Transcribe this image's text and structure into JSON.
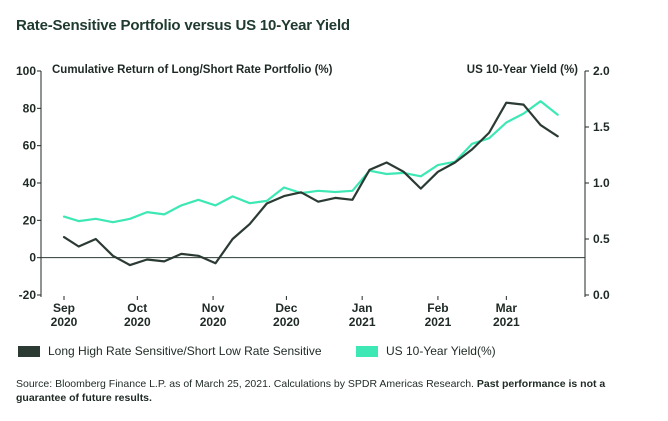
{
  "title": "Rate-Sensitive Portfolio versus US 10-Year Yield",
  "source_text": "Source: Bloomberg Finance L.P. as of March 25, 2021. Calculations by SPDR Americas Research.",
  "disclaimer": "Past performance is not a guarantee of future results.",
  "colors": {
    "series1": "#2b3a32",
    "series2": "#3ee8b5",
    "zero_line": "#2b3a32",
    "text": "#1f2a24"
  },
  "chart_data": {
    "type": "line",
    "title": "Rate-Sensitive Portfolio versus US 10-Year Yield",
    "ylabel_left": "Cumulative Return of Long/Short Rate Portfolio (%)",
    "ylabel_right": "US 10-Year Yield (%)",
    "ylim_left": [
      -20,
      100
    ],
    "ylim_right": [
      0.0,
      2.0
    ],
    "yticks_left": [
      "-20",
      "0",
      "20",
      "40",
      "60",
      "80",
      "100"
    ],
    "yticks_right": [
      "0.0",
      "0.5",
      "1.0",
      "1.5",
      "2.0"
    ],
    "xlim": [
      "2020-09-01",
      "2021-03-25"
    ],
    "xticks": [
      {
        "date": "2020-09-01",
        "month": "Sep",
        "year": "2020"
      },
      {
        "date": "2020-10-01",
        "month": "Oct",
        "year": "2020"
      },
      {
        "date": "2020-11-01",
        "month": "Nov",
        "year": "2020"
      },
      {
        "date": "2020-12-01",
        "month": "Dec",
        "year": "2020"
      },
      {
        "date": "2021-01-01",
        "month": "Jan",
        "year": "2021"
      },
      {
        "date": "2021-02-01",
        "month": "Feb",
        "year": "2021"
      },
      {
        "date": "2021-03-01",
        "month": "Mar",
        "year": "2021"
      }
    ],
    "grid": false,
    "legend_position": "bottom",
    "series": [
      {
        "name": "Long High Rate Sensitive/Short Low Rate Sensitive",
        "axis": "left",
        "color": "#2b3a32",
        "points": [
          [
            "2020-09-01",
            11
          ],
          [
            "2020-09-07",
            6
          ],
          [
            "2020-09-14",
            10
          ],
          [
            "2020-09-21",
            1
          ],
          [
            "2020-09-28",
            -4
          ],
          [
            "2020-10-05",
            -1
          ],
          [
            "2020-10-12",
            -2
          ],
          [
            "2020-10-19",
            2
          ],
          [
            "2020-10-26",
            1
          ],
          [
            "2020-11-02",
            -3
          ],
          [
            "2020-11-09",
            10
          ],
          [
            "2020-11-16",
            18
          ],
          [
            "2020-11-23",
            29
          ],
          [
            "2020-11-30",
            33
          ],
          [
            "2020-12-07",
            35
          ],
          [
            "2020-12-14",
            30
          ],
          [
            "2020-12-21",
            32
          ],
          [
            "2020-12-28",
            31
          ],
          [
            "2021-01-04",
            47
          ],
          [
            "2021-01-11",
            51
          ],
          [
            "2021-01-18",
            46
          ],
          [
            "2021-01-25",
            37
          ],
          [
            "2021-02-01",
            46
          ],
          [
            "2021-02-08",
            51
          ],
          [
            "2021-02-15",
            58
          ],
          [
            "2021-02-22",
            67
          ],
          [
            "2021-03-01",
            83
          ],
          [
            "2021-03-08",
            82
          ],
          [
            "2021-03-15",
            71
          ],
          [
            "2021-03-22",
            65
          ]
        ]
      },
      {
        "name": "US 10-Year Yield(%)",
        "axis": "right",
        "color": "#3ee8b5",
        "points": [
          [
            "2020-09-01",
            0.7
          ],
          [
            "2020-09-07",
            0.66
          ],
          [
            "2020-09-14",
            0.68
          ],
          [
            "2020-09-21",
            0.65
          ],
          [
            "2020-09-28",
            0.68
          ],
          [
            "2020-10-05",
            0.74
          ],
          [
            "2020-10-12",
            0.72
          ],
          [
            "2020-10-19",
            0.8
          ],
          [
            "2020-10-26",
            0.85
          ],
          [
            "2020-11-02",
            0.8
          ],
          [
            "2020-11-09",
            0.88
          ],
          [
            "2020-11-16",
            0.82
          ],
          [
            "2020-11-23",
            0.84
          ],
          [
            "2020-11-30",
            0.96
          ],
          [
            "2020-12-07",
            0.91
          ],
          [
            "2020-12-14",
            0.93
          ],
          [
            "2020-12-21",
            0.92
          ],
          [
            "2020-12-28",
            0.93
          ],
          [
            "2021-01-04",
            1.11
          ],
          [
            "2021-01-11",
            1.08
          ],
          [
            "2021-01-18",
            1.09
          ],
          [
            "2021-01-25",
            1.06
          ],
          [
            "2021-02-01",
            1.16
          ],
          [
            "2021-02-08",
            1.19
          ],
          [
            "2021-02-15",
            1.35
          ],
          [
            "2021-02-22",
            1.4
          ],
          [
            "2021-03-01",
            1.54
          ],
          [
            "2021-03-08",
            1.62
          ],
          [
            "2021-03-15",
            1.73
          ],
          [
            "2021-03-22",
            1.61
          ]
        ]
      }
    ]
  }
}
